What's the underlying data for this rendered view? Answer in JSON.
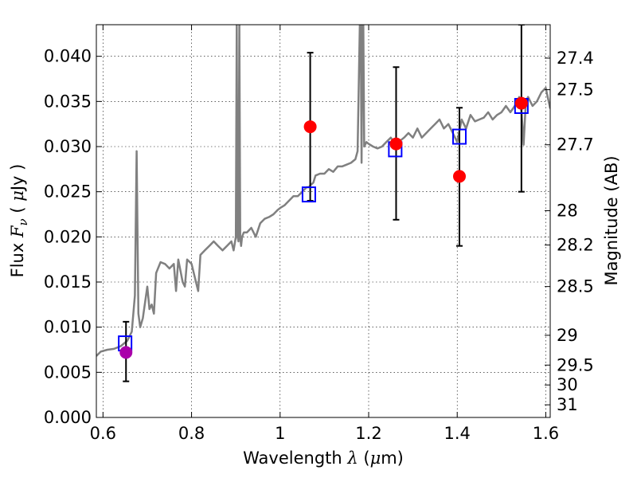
{
  "chart_data": {
    "type": "scatter",
    "title": "",
    "xlabel": {
      "prefix": "Wavelength  ",
      "symbol": "λ",
      "open": " (",
      "unit_symbol": "μ",
      "unit": "m)"
    },
    "ylabel": {
      "prefix": "Flux  ",
      "symbol": "F",
      "subscript": "ν",
      "open": "  ( ",
      "unit_symbol": "μ",
      "unit": "Jy )"
    },
    "ylabel_right": "Magnitude (AB)",
    "xlim": [
      0.585,
      1.61
    ],
    "ylim": [
      0.0,
      0.0435
    ],
    "grid": true,
    "x_ticks": [
      {
        "value": 0.6,
        "label": "0.6"
      },
      {
        "value": 0.8,
        "label": "0.8"
      },
      {
        "value": 1.0,
        "label": "1"
      },
      {
        "value": 1.2,
        "label": "1.2"
      },
      {
        "value": 1.4,
        "label": "1.4"
      },
      {
        "value": 1.6,
        "label": "1.6"
      }
    ],
    "y_ticks": [
      {
        "value": 0.0,
        "label": "0.000"
      },
      {
        "value": 0.005,
        "label": "0.005"
      },
      {
        "value": 0.01,
        "label": "0.010"
      },
      {
        "value": 0.015,
        "label": "0.015"
      },
      {
        "value": 0.02,
        "label": "0.020"
      },
      {
        "value": 0.025,
        "label": "0.025"
      },
      {
        "value": 0.03,
        "label": "0.030"
      },
      {
        "value": 0.035,
        "label": "0.035"
      },
      {
        "value": 0.04,
        "label": "0.040"
      }
    ],
    "right_ticks": [
      {
        "flux": 0.0398,
        "label": "27.4"
      },
      {
        "flux": 0.0363,
        "label": "27.5"
      },
      {
        "flux": 0.0302,
        "label": "27.7"
      },
      {
        "flux": 0.0229,
        "label": "28"
      },
      {
        "flux": 0.0191,
        "label": "28.2"
      },
      {
        "flux": 0.0145,
        "label": "28.5"
      },
      {
        "flux": 0.0091,
        "label": "29"
      },
      {
        "flux": 0.0058,
        "label": "29.5"
      },
      {
        "flux": 0.0036,
        "label": "30"
      },
      {
        "flux": 0.0014,
        "label": "31"
      }
    ],
    "series": [
      {
        "kind": "spectrum",
        "color": "#808080",
        "x": [
          0.585,
          0.595,
          0.61,
          0.625,
          0.64,
          0.655,
          0.665,
          0.672,
          0.676,
          0.68,
          0.684,
          0.69,
          0.7,
          0.705,
          0.71,
          0.715,
          0.72,
          0.73,
          0.74,
          0.75,
          0.76,
          0.765,
          0.77,
          0.78,
          0.785,
          0.79,
          0.8,
          0.81,
          0.815,
          0.82,
          0.83,
          0.84,
          0.85,
          0.86,
          0.87,
          0.88,
          0.89,
          0.895,
          0.9,
          0.902,
          0.904,
          0.906,
          0.908,
          0.91,
          0.912,
          0.914,
          0.918,
          0.925,
          0.935,
          0.945,
          0.955,
          0.965,
          0.975,
          0.985,
          0.995,
          1.0,
          1.01,
          1.02,
          1.03,
          1.04,
          1.05,
          1.06,
          1.065,
          1.07,
          1.075,
          1.08,
          1.09,
          1.1,
          1.11,
          1.12,
          1.13,
          1.14,
          1.15,
          1.16,
          1.17,
          1.175,
          1.18,
          1.182,
          1.184,
          1.186,
          1.188,
          1.19,
          1.195,
          1.2,
          1.21,
          1.22,
          1.23,
          1.24,
          1.25,
          1.26,
          1.27,
          1.28,
          1.29,
          1.3,
          1.31,
          1.32,
          1.33,
          1.34,
          1.35,
          1.36,
          1.37,
          1.38,
          1.39,
          1.4,
          1.41,
          1.42,
          1.43,
          1.44,
          1.45,
          1.46,
          1.47,
          1.48,
          1.49,
          1.5,
          1.51,
          1.52,
          1.53,
          1.54,
          1.545,
          1.55,
          1.555,
          1.56,
          1.57,
          1.58,
          1.59,
          1.6,
          1.61
        ],
        "y": [
          0.0068,
          0.0073,
          0.0075,
          0.0076,
          0.0079,
          0.0085,
          0.0095,
          0.0135,
          0.0295,
          0.0115,
          0.01,
          0.011,
          0.0145,
          0.012,
          0.0125,
          0.0115,
          0.016,
          0.0172,
          0.017,
          0.0165,
          0.017,
          0.014,
          0.0175,
          0.015,
          0.0145,
          0.0175,
          0.017,
          0.015,
          0.014,
          0.018,
          0.0185,
          0.019,
          0.0195,
          0.019,
          0.0185,
          0.019,
          0.0195,
          0.0185,
          0.02,
          0.0435,
          0.02,
          0.0195,
          0.0435,
          0.02,
          0.019,
          0.02,
          0.0205,
          0.0205,
          0.021,
          0.02,
          0.0215,
          0.022,
          0.0222,
          0.0225,
          0.023,
          0.0232,
          0.0235,
          0.024,
          0.0245,
          0.0245,
          0.025,
          0.0255,
          0.0255,
          0.0258,
          0.026,
          0.0268,
          0.027,
          0.027,
          0.0275,
          0.0272,
          0.0278,
          0.0278,
          0.028,
          0.0282,
          0.0286,
          0.0295,
          0.0435,
          0.0435,
          0.0282,
          0.0435,
          0.0435,
          0.03,
          0.0305,
          0.0303,
          0.03,
          0.0298,
          0.03,
          0.0305,
          0.031,
          0.0303,
          0.0306,
          0.031,
          0.0315,
          0.031,
          0.032,
          0.031,
          0.0315,
          0.032,
          0.0325,
          0.033,
          0.032,
          0.0325,
          0.0315,
          0.0305,
          0.033,
          0.032,
          0.0335,
          0.0328,
          0.033,
          0.0332,
          0.0338,
          0.033,
          0.0335,
          0.0338,
          0.0345,
          0.0338,
          0.0345,
          0.0355,
          0.034,
          0.0302,
          0.035,
          0.0355,
          0.0345,
          0.035,
          0.036,
          0.0365,
          0.0342
        ]
      },
      {
        "kind": "model-bands",
        "color": "#0000ff",
        "marker": "square-open",
        "x": [
          0.65,
          1.065,
          1.26,
          1.405,
          1.545
        ],
        "y": [
          0.0082,
          0.0247,
          0.0297,
          0.0311,
          0.0345
        ]
      },
      {
        "kind": "observed",
        "color": "#ff0000",
        "marker": "circle",
        "x": [
          1.068,
          1.262,
          1.405,
          1.545
        ],
        "y": [
          0.0322,
          0.0303,
          0.0267,
          0.0348
        ],
        "yerr_low": [
          0.024,
          0.0219,
          0.019,
          0.025
        ],
        "yerr_high": [
          0.0404,
          0.0388,
          0.0343,
          0.0435
        ]
      },
      {
        "kind": "observed-optical",
        "color": "#aa00aa",
        "marker": "circle",
        "x": [
          0.652
        ],
        "y": [
          0.0072
        ],
        "yerr_low": [
          0.004
        ],
        "yerr_high": [
          0.0106
        ]
      }
    ]
  }
}
